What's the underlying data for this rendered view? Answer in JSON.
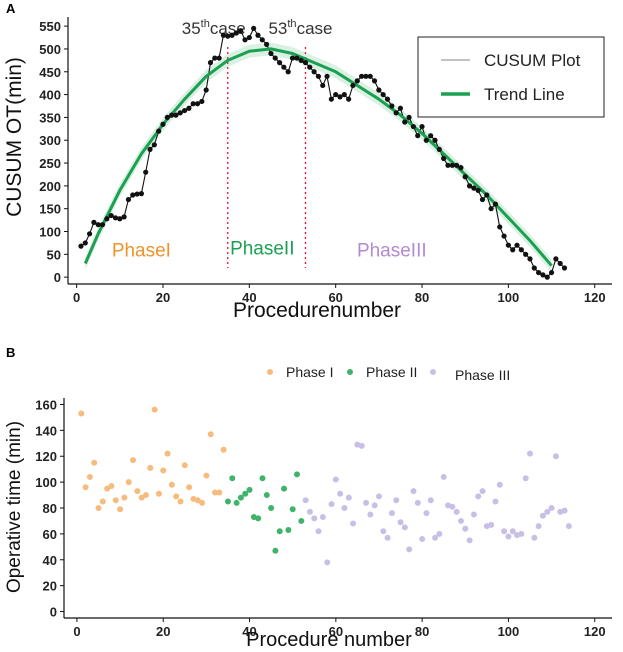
{
  "chart_data": [
    {
      "panel_label": "A",
      "type": "line",
      "title": "",
      "xlabel": "Procedurenumber",
      "ylabel": "CUSUM OT(min)",
      "xlim": [
        -2,
        124
      ],
      "ylim": [
        -15,
        570
      ],
      "x_ticks": [
        0,
        20,
        40,
        60,
        80,
        100,
        120
      ],
      "y_ticks": [
        0,
        50,
        100,
        150,
        200,
        250,
        300,
        350,
        400,
        450,
        500,
        550
      ],
      "grid": false,
      "legend": {
        "placement": "top-right",
        "entries": [
          {
            "label": "CUSUM Plot",
            "color": "#9e9e9e"
          },
          {
            "label": "Trend Line",
            "color": "#1aa050"
          }
        ]
      },
      "series": [
        {
          "name": "CUSUM Plot",
          "color": "#111111",
          "x": [
            1,
            2,
            3,
            4,
            5,
            6,
            7,
            8,
            9,
            10,
            11,
            12,
            13,
            14,
            15,
            16,
            17,
            18,
            19,
            20,
            21,
            22,
            23,
            24,
            25,
            26,
            27,
            28,
            29,
            30,
            31,
            32,
            33,
            34,
            35,
            36,
            37,
            38,
            39,
            40,
            41,
            42,
            43,
            44,
            45,
            46,
            47,
            48,
            49,
            50,
            51,
            52,
            53,
            54,
            55,
            56,
            57,
            58,
            59,
            60,
            61,
            62,
            63,
            64,
            65,
            66,
            67,
            68,
            69,
            70,
            71,
            72,
            73,
            74,
            75,
            76,
            77,
            78,
            79,
            80,
            81,
            82,
            83,
            84,
            85,
            86,
            87,
            88,
            89,
            90,
            91,
            92,
            93,
            94,
            95,
            96,
            97,
            98,
            99,
            100,
            101,
            102,
            103,
            104,
            105,
            106,
            107,
            108,
            109,
            110,
            111,
            112,
            113
          ],
          "values": [
            68,
            75,
            95,
            120,
            115,
            115,
            128,
            135,
            130,
            128,
            132,
            170,
            180,
            182,
            183,
            230,
            280,
            290,
            320,
            335,
            350,
            355,
            355,
            360,
            365,
            370,
            380,
            380,
            385,
            410,
            470,
            480,
            480,
            530,
            528,
            530,
            535,
            540,
            520,
            525,
            545,
            530,
            520,
            510,
            490,
            480,
            470,
            460,
            450,
            480,
            480,
            475,
            470,
            460,
            450,
            440,
            420,
            440,
            390,
            400,
            395,
            400,
            390,
            420,
            430,
            440,
            440,
            440,
            430,
            410,
            400,
            390,
            375,
            360,
            370,
            340,
            350,
            330,
            310,
            330,
            300,
            310,
            300,
            280,
            260,
            245,
            245,
            245,
            240,
            220,
            200,
            195,
            190,
            170,
            180,
            150,
            160,
            110,
            90,
            70,
            60,
            70,
            60,
            50,
            40,
            20,
            10,
            5,
            0,
            10,
            40,
            30,
            20
          ]
        },
        {
          "name": "Trend Line",
          "color": "#1aa050",
          "x": [
            2,
            5,
            10,
            15,
            20,
            25,
            30,
            35,
            40,
            45,
            50,
            55,
            60,
            65,
            70,
            75,
            80,
            85,
            90,
            95,
            100,
            105,
            110
          ],
          "values": [
            30,
            95,
            190,
            270,
            335,
            390,
            440,
            475,
            495,
            500,
            490,
            470,
            450,
            420,
            390,
            355,
            315,
            270,
            225,
            180,
            130,
            80,
            25
          ]
        }
      ],
      "vlines": [
        {
          "x": 35,
          "color": "#e8103a",
          "label": "35th case",
          "label_parts": [
            "35",
            "th",
            "case"
          ]
        },
        {
          "x": 53,
          "color": "#e8103a",
          "label": "53th case",
          "label_parts": [
            "53",
            "th",
            "case"
          ]
        }
      ],
      "annotations": [
        {
          "text": "PhaseI",
          "color": "#f0922b",
          "x": 15,
          "y": 45
        },
        {
          "text": "PhaseII",
          "color": "#1aa050",
          "x": 43,
          "y": 50
        },
        {
          "text": "PhaseIII",
          "color": "#b28ad2",
          "x": 73,
          "y": 45
        }
      ]
    },
    {
      "panel_label": "B",
      "type": "scatter",
      "title": "",
      "xlabel": "Procedure number",
      "ylabel": "Operative time (min)",
      "xlim": [
        -3,
        124
      ],
      "ylim": [
        -5,
        165
      ],
      "x_ticks": [
        0,
        20,
        40,
        60,
        80,
        100,
        120
      ],
      "y_ticks": [
        0,
        20,
        40,
        60,
        80,
        100,
        120,
        140,
        160
      ],
      "grid": false,
      "legend": {
        "placement": "top",
        "entries": [
          {
            "label": "Phase I",
            "color": "#f7bb7e"
          },
          {
            "label": "Phase II",
            "color": "#40b36a"
          },
          {
            "label": "Phase III",
            "color": "#c9bfe6"
          }
        ]
      },
      "series": [
        {
          "name": "Phase I",
          "color": "#f7bb7e",
          "x": [
            1,
            2,
            3,
            4,
            5,
            6,
            7,
            8,
            9,
            10,
            11,
            12,
            13,
            14,
            15,
            16,
            17,
            18,
            19,
            20,
            21,
            22,
            23,
            24,
            25,
            26,
            27,
            28,
            29,
            30,
            31,
            32,
            33,
            34
          ],
          "values": [
            153,
            96,
            104,
            115,
            80,
            85,
            95,
            97,
            86,
            79,
            88,
            100,
            117,
            93,
            88,
            90,
            111,
            156,
            91,
            109,
            122,
            98,
            89,
            85,
            113,
            96,
            87,
            86,
            84,
            105,
            137,
            92,
            92,
            125
          ]
        },
        {
          "name": "Phase II",
          "color": "#40b36a",
          "x": [
            35,
            36,
            37,
            38,
            39,
            40,
            41,
            42,
            43,
            44,
            45,
            46,
            47,
            48,
            49,
            50,
            51,
            52
          ],
          "values": [
            85,
            103,
            84,
            88,
            91,
            94,
            73,
            72,
            103,
            90,
            80,
            47,
            62,
            95,
            63,
            79,
            106,
            70
          ]
        },
        {
          "name": "Phase III",
          "color": "#c9bfe6",
          "x": [
            53,
            54,
            55,
            56,
            57,
            58,
            59,
            60,
            61,
            62,
            63,
            64,
            65,
            66,
            67,
            68,
            69,
            70,
            71,
            72,
            73,
            74,
            75,
            76,
            77,
            78,
            79,
            80,
            81,
            82,
            83,
            84,
            85,
            86,
            87,
            88,
            89,
            90,
            91,
            92,
            93,
            94,
            95,
            96,
            97,
            98,
            99,
            100,
            101,
            102,
            103,
            104,
            105,
            106,
            107,
            108,
            109,
            110,
            111,
            112,
            113,
            114
          ],
          "values": [
            86,
            77,
            72,
            62,
            73,
            38,
            83,
            102,
            91,
            80,
            88,
            68,
            129,
            128,
            84,
            75,
            82,
            89,
            62,
            57,
            76,
            86,
            69,
            65,
            48,
            93,
            84,
            56,
            76,
            86,
            57,
            60,
            104,
            82,
            81,
            77,
            70,
            64,
            55,
            75,
            89,
            93,
            66,
            67,
            85,
            98,
            62,
            58,
            62,
            59,
            60,
            103,
            122,
            57,
            66,
            74,
            77,
            80,
            120,
            77,
            78,
            66
          ]
        }
      ]
    }
  ]
}
